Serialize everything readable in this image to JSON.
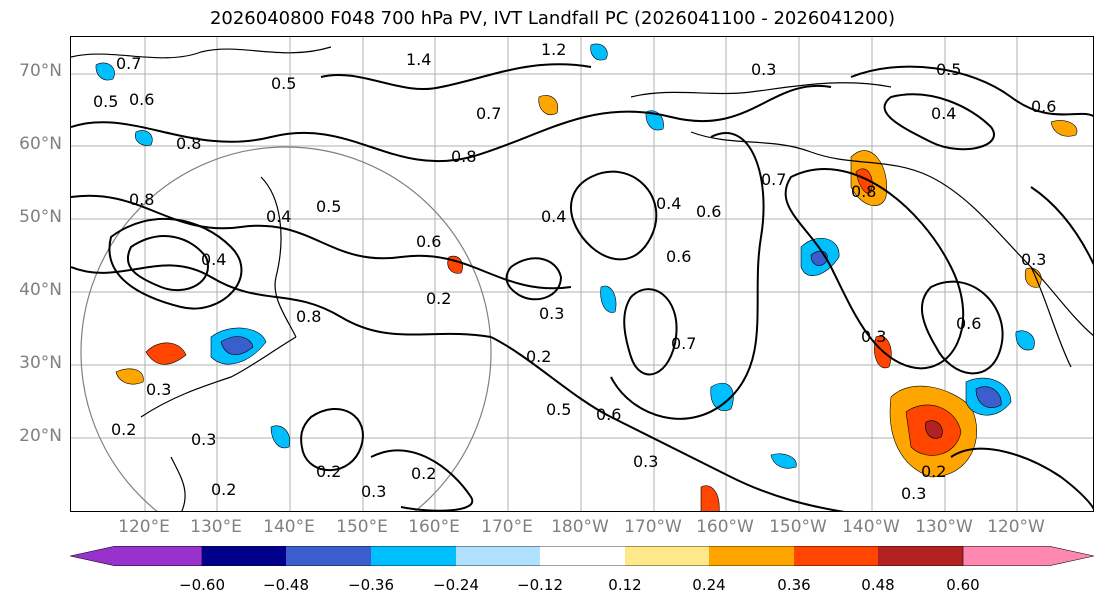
{
  "title": "2026040800 F048 700 hPa PV, IVT Landfall PC (2026041100 - 2026041200)",
  "lat_labels": [
    "70°N",
    "60°N",
    "50°N",
    "40°N",
    "30°N",
    "20°N"
  ],
  "lon_labels": [
    "120°E",
    "130°E",
    "140°E",
    "150°E",
    "160°E",
    "170°E",
    "180°W",
    "170°W",
    "160°W",
    "150°W",
    "140°W",
    "130°W",
    "120°W"
  ],
  "colorbar": {
    "colors": [
      "#9932cc",
      "#00008b",
      "#3a5fcd",
      "#00bfff",
      "#b0e2ff",
      "#ffffff",
      "#ffe88a",
      "#ffa500",
      "#ff4500",
      "#b22222",
      "#ff88b0"
    ],
    "tick_labels": [
      "−0.60",
      "−0.48",
      "−0.36",
      "−0.24",
      "−0.12",
      "0.12",
      "0.24",
      "0.36",
      "0.48",
      "0.60"
    ]
  },
  "contour_labels": [
    "0.7",
    "0.5",
    "0.6",
    "0.8",
    "1.4",
    "1.2",
    "0.3",
    "0.5",
    "0.6",
    "0.4",
    "0.7",
    "0.8",
    "0.4",
    "0.5",
    "0.6",
    "0.8",
    "0.4",
    "0.6",
    "0.4",
    "0.6",
    "0.3",
    "0.7",
    "0.2",
    "0.5",
    "0.6",
    "0.3",
    "0.3",
    "0.6",
    "0.2",
    "0.3",
    "0.2",
    "0.3",
    "0.2",
    "0.2",
    "0.3",
    "0.2",
    "0.3",
    "0.8",
    "0.7",
    "0.4",
    "0.5",
    "0.8",
    "0.3",
    "0.2"
  ]
}
